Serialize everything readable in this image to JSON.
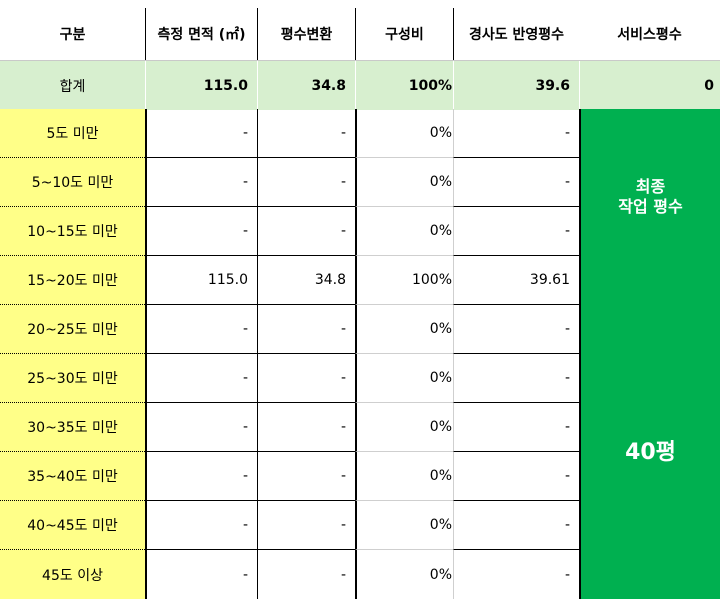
{
  "headers": [
    "구분",
    "측정 면적 (㎡)",
    "평수변환",
    "구성비",
    "경사도 반영평수",
    "서비스평수"
  ],
  "total": {
    "label": "합계",
    "area": "115.0",
    "pyeong": "34.8",
    "ratio": "100%",
    "slope_pyeong": "39.6",
    "service": "0"
  },
  "rows": [
    {
      "label": "5도 미만",
      "area": "-",
      "pyeong": "-",
      "ratio": "0%",
      "slope_pyeong": "-"
    },
    {
      "label": "5~10도 미만",
      "area": "-",
      "pyeong": "-",
      "ratio": "0%",
      "slope_pyeong": "-"
    },
    {
      "label": "10~15도 미만",
      "area": "-",
      "pyeong": "-",
      "ratio": "0%",
      "slope_pyeong": "-"
    },
    {
      "label": "15~20도 미만",
      "area": "115.0",
      "pyeong": "34.8",
      "ratio": "100%",
      "slope_pyeong": "39.61"
    },
    {
      "label": "20~25도 미만",
      "area": "-",
      "pyeong": "-",
      "ratio": "0%",
      "slope_pyeong": "-"
    },
    {
      "label": "25~30도 미만",
      "area": "-",
      "pyeong": "-",
      "ratio": "0%",
      "slope_pyeong": "-"
    },
    {
      "label": "30~35도 미만",
      "area": "-",
      "pyeong": "-",
      "ratio": "0%",
      "slope_pyeong": "-"
    },
    {
      "label": "35~40도 미만",
      "area": "-",
      "pyeong": "-",
      "ratio": "0%",
      "slope_pyeong": "-"
    },
    {
      "label": "40~45도 미만",
      "area": "-",
      "pyeong": "-",
      "ratio": "0%",
      "slope_pyeong": "-"
    },
    {
      "label": "45도 이상",
      "area": "-",
      "pyeong": "-",
      "ratio": "0%",
      "slope_pyeong": "-"
    }
  ],
  "service_block": {
    "label": "최종\n작업 평수",
    "value": "40평"
  },
  "colors": {
    "label_bg": "#ffff88",
    "total_bg": "#d7efcf",
    "service_bg": "#00b050"
  }
}
